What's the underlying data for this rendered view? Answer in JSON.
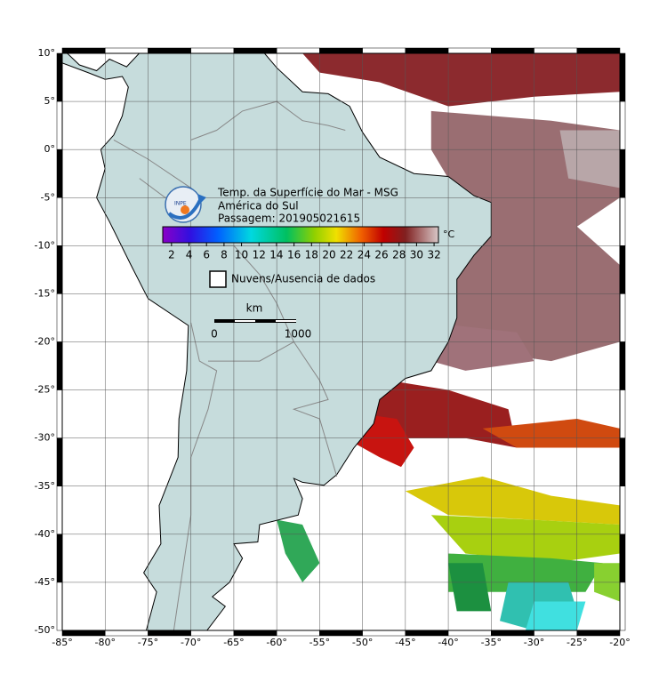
{
  "title_lines": [
    "Temp. da Superfície do Mar - MSG",
    "América do Sul",
    "Passagem: 201905021615"
  ],
  "colorbar": {
    "range": [
      1,
      32.5
    ],
    "ticks": [
      2,
      4,
      6,
      8,
      10,
      12,
      14,
      16,
      18,
      20,
      22,
      24,
      26,
      28,
      30,
      32
    ],
    "unit": "°C"
  },
  "legend": "Nuvens/Ausencia de dados",
  "scale_bar": {
    "unit": "km",
    "labels": [
      "0",
      "1000"
    ]
  },
  "map": {
    "lon_range": [
      -85,
      -20
    ],
    "lat_range": [
      -50,
      10
    ],
    "lon_ticks": [
      {
        "value": -85,
        "label": "-85°"
      },
      {
        "value": -80,
        "label": "-80°"
      },
      {
        "value": -75,
        "label": "-75°"
      },
      {
        "value": -70,
        "label": "-70°"
      },
      {
        "value": -65,
        "label": "-65°"
      },
      {
        "value": -60,
        "label": "-60°"
      },
      {
        "value": -55,
        "label": "-55°"
      },
      {
        "value": -50,
        "label": "-50°"
      },
      {
        "value": -45,
        "label": "-45°"
      },
      {
        "value": -40,
        "label": "-40°"
      },
      {
        "value": -35,
        "label": "-35°"
      },
      {
        "value": -30,
        "label": "-30°"
      },
      {
        "value": -25,
        "label": "-25°"
      },
      {
        "value": -20,
        "label": "-20°"
      }
    ],
    "lat_ticks": [
      {
        "value": 10,
        "label": "10°"
      },
      {
        "value": 5,
        "label": "5°"
      },
      {
        "value": 0,
        "label": "0°"
      },
      {
        "value": -5,
        "label": "-5°"
      },
      {
        "value": -10,
        "label": "-10°"
      },
      {
        "value": -15,
        "label": "-15°"
      },
      {
        "value": -20,
        "label": "-20°"
      },
      {
        "value": -25,
        "label": "-25°"
      },
      {
        "value": -30,
        "label": "-30°"
      },
      {
        "value": -35,
        "label": "-35°"
      },
      {
        "value": -40,
        "label": "-40°"
      },
      {
        "value": -45,
        "label": "-45°"
      },
      {
        "value": -50,
        "label": "-50°"
      }
    ]
  }
}
